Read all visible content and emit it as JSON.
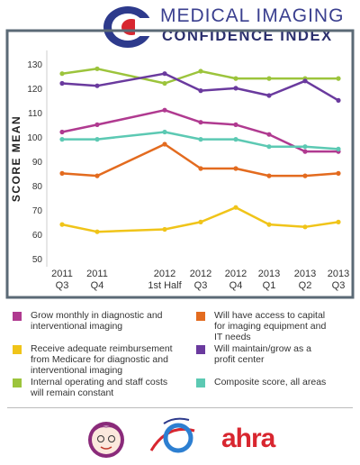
{
  "header": {
    "title": "MEDICAL IMAGING",
    "subtitle": "CONFIDENCE INDEX",
    "brand_logo_icon": "medical-imaging-logo-icon"
  },
  "footer": {
    "logos": [
      "grandma-mascot-icon",
      "imaging-swoosh-icon"
    ],
    "ahra_logo": "ahra"
  },
  "colors": {
    "magenta": "#b03a90",
    "yellow": "#f0c419",
    "green": "#9cc43c",
    "orange": "#e36b1f",
    "purple": "#6a3a9e",
    "teal": "#5cc9b3",
    "frame": "#5b6a76"
  },
  "chart_data": {
    "type": "line",
    "ylabel": "SCORE MEAN",
    "xlabel": "",
    "ylim": [
      47,
      137
    ],
    "yticks": [
      50,
      60,
      70,
      80,
      90,
      100,
      110,
      120,
      130
    ],
    "grid": false,
    "legend_position": "bottom",
    "categories": [
      [
        "2011",
        "Q3"
      ],
      [
        "2011",
        "Q4"
      ],
      [
        "2012",
        "1st Half"
      ],
      [
        "2012",
        "Q3"
      ],
      [
        "2012",
        "Q4"
      ],
      [
        "2013",
        "Q1"
      ],
      [
        "2013",
        "Q2"
      ],
      [
        "2013",
        "Q3"
      ]
    ],
    "series": [
      {
        "name": "Internal operating and staff costs will remain constant",
        "color": "#9cc43c",
        "values": [
          126,
          128,
          122,
          127,
          124,
          124,
          124,
          124
        ]
      },
      {
        "name": "Will maintain/grow as a profit center",
        "color": "#6a3a9e",
        "values": [
          122,
          121,
          126,
          119,
          120,
          117,
          123,
          115
        ]
      },
      {
        "name": "Grow monthly in diagnostic and interventional imaging",
        "color": "#b03a90",
        "values": [
          102,
          105,
          111,
          106,
          105,
          101,
          94,
          94
        ]
      },
      {
        "name": "Composite score, all areas",
        "color": "#5cc9b3",
        "values": [
          99,
          99,
          102,
          99,
          99,
          96,
          96,
          95
        ]
      },
      {
        "name": "Will have access to capital for imaging equipment and IT needs",
        "color": "#e36b1f",
        "values": [
          85,
          84,
          97,
          87,
          87,
          84,
          84,
          85
        ]
      },
      {
        "name": "Receive adequate reimbursement from Medicare for diagnostic and interventional imaging",
        "color": "#f0c419",
        "values": [
          64,
          61,
          62,
          65,
          71,
          64,
          63,
          65
        ]
      }
    ]
  },
  "legend": [
    {
      "label": "Grow monthly in diagnostic and interventional imaging",
      "color": "#b03a90"
    },
    {
      "label": "Will have access to capital for imaging equipment and IT needs",
      "color": "#e36b1f"
    },
    {
      "label": "Receive adequate reimbursement from Medicare for diagnostic and interventional imaging",
      "color": "#f0c419"
    },
    {
      "label": "Will maintain/grow as a profit center",
      "color": "#6a3a9e"
    },
    {
      "label": "Internal operating and staff costs will remain constant",
      "color": "#9cc43c"
    },
    {
      "label": "Composite score, all areas",
      "color": "#5cc9b3"
    }
  ]
}
